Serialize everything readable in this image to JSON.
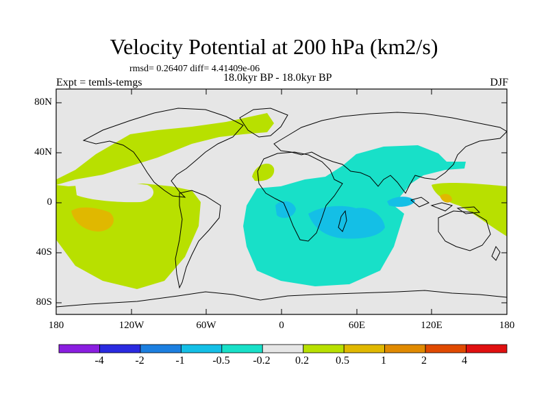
{
  "title": "Velocity Potential at 200 hPa (km2/s)",
  "stats_line": "rmsd= 0.26407 diff= 4.41409e-06",
  "experiment_line": "Expt = temls-temgs",
  "period_line": "18.0kyr BP - 18.0kyr BP",
  "season": "DJF",
  "lat_labels": [
    "80N",
    "40N",
    "0",
    "40S",
    "80S"
  ],
  "lon_labels": [
    "180",
    "120W",
    "60W",
    "0",
    "60E",
    "120E",
    "180"
  ],
  "colorbar": {
    "labels": [
      "-4",
      "-2",
      "-1",
      "-0.5",
      "-0.2",
      "0.2",
      "0.5",
      "1",
      "2",
      "4"
    ],
    "colors": [
      "#8a1ee0",
      "#2a2ae0",
      "#1c7fe0",
      "#14bfe6",
      "#18e0c8",
      "#e6e6e6",
      "#b8e000",
      "#e0b800",
      "#e08a00",
      "#e04a00",
      "#e01010"
    ]
  }
}
